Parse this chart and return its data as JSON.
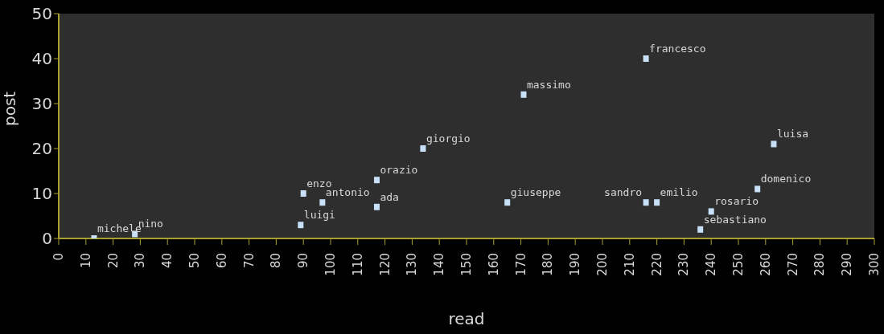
{
  "chart_data": {
    "type": "scatter",
    "xlabel": "read",
    "ylabel": "post",
    "marker": "square",
    "grid": false,
    "legend": false,
    "series": [
      {
        "color": "#c8e0f8",
        "x": [
          13,
          28,
          89,
          90,
          97,
          117,
          117,
          134,
          165,
          171,
          216,
          216,
          220,
          240,
          236,
          257,
          263
        ],
        "values": [
          0,
          1,
          3,
          10,
          8,
          13,
          7,
          20,
          8,
          32,
          40,
          8,
          8,
          6,
          2,
          11,
          21
        ]
      }
    ],
    "xlim": [
      0,
      300
    ],
    "xticks": [
      0,
      10,
      20,
      30,
      40,
      50,
      60,
      70,
      80,
      90,
      100,
      110,
      120,
      130,
      140,
      150,
      160,
      170,
      180,
      190,
      200,
      210,
      220,
      230,
      240,
      250,
      260,
      270,
      280,
      290,
      300
    ],
    "ylim": [
      0,
      50
    ],
    "yticks": [
      0,
      10,
      20,
      30,
      40,
      50
    ],
    "annotations": [
      {
        "text": "michele",
        "x": 13,
        "y": 0
      },
      {
        "text": "nino",
        "x": 28,
        "y": 1
      },
      {
        "text": "luigi",
        "x": 89,
        "y": 3
      },
      {
        "text": "enzo",
        "x": 90,
        "y": 10
      },
      {
        "text": "antonio",
        "x": 97,
        "y": 8
      },
      {
        "text": "orazio",
        "x": 117,
        "y": 13
      },
      {
        "text": "ada",
        "x": 117,
        "y": 7
      },
      {
        "text": "giorgio",
        "x": 134,
        "y": 20
      },
      {
        "text": "giuseppe",
        "x": 165,
        "y": 8
      },
      {
        "text": "massimo",
        "x": 171,
        "y": 32
      },
      {
        "text": "francesco",
        "x": 216,
        "y": 40
      },
      {
        "text": "sandro",
        "x": 216,
        "y": 8
      },
      {
        "text": "emilio",
        "x": 220,
        "y": 8
      },
      {
        "text": "rosario",
        "x": 240,
        "y": 6
      },
      {
        "text": "sebastiano",
        "x": 236,
        "y": 2
      },
      {
        "text": "domenico",
        "x": 257,
        "y": 11
      },
      {
        "text": "luisa",
        "x": 263,
        "y": 21
      }
    ]
  }
}
